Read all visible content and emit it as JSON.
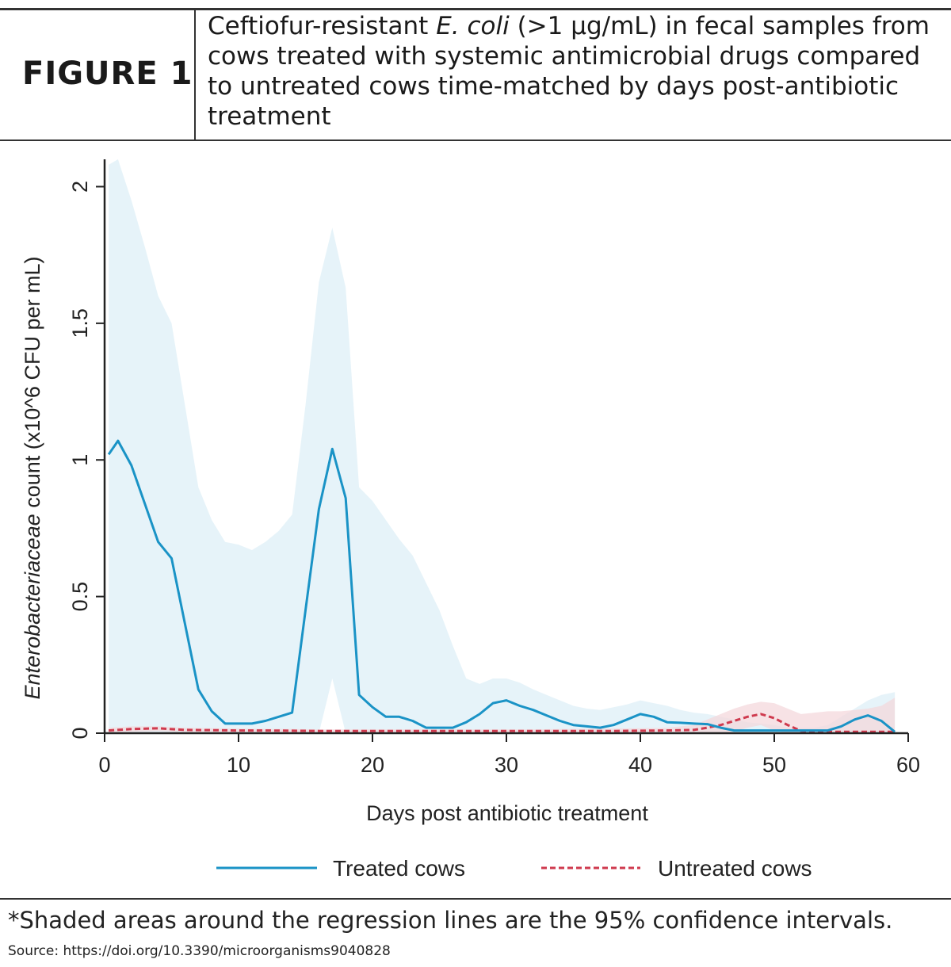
{
  "header": {
    "figure_label": "FIGURE 1",
    "caption": {
      "pre": "Ceftiofur-resistant ",
      "italic": "E. coli",
      "post": " (>1 µg/mL) in fecal samples from cows treated with systemic antimicrobial drugs compared to untreated cows time-matched by days post-antibiotic treatment"
    }
  },
  "chart_data": {
    "type": "line",
    "xlabel": "Days post antibiotic treatment",
    "ylabel_italic": "Enterobacteriaceae",
    "ylabel_rest": " count (x10^6 CFU per mL)",
    "xlim": [
      0,
      60
    ],
    "ylim": [
      0,
      2.1
    ],
    "xticks": [
      0,
      10,
      20,
      30,
      40,
      50,
      60
    ],
    "yticks": [
      0,
      0.5,
      1,
      1.5,
      2
    ],
    "xtick_labels": [
      "0",
      "10",
      "20",
      "30",
      "40",
      "50",
      "60"
    ],
    "ytick_labels": [
      "0",
      "0.5",
      "1",
      "1.5",
      "2"
    ],
    "legend_position": "bottom",
    "grid": false,
    "series": [
      {
        "name": "Treated cows",
        "color": "#1a93c6",
        "band_color": "#ddeff7",
        "line_style": "solid",
        "x": [
          0.3,
          1,
          2,
          3,
          4,
          5,
          6,
          7,
          8,
          9,
          10,
          11,
          12,
          13,
          14,
          15,
          16,
          17,
          18,
          19,
          20,
          21,
          22,
          23,
          24,
          25,
          26,
          27,
          28,
          29,
          30,
          31,
          32,
          33,
          34,
          35,
          36,
          37,
          38,
          39,
          40,
          41,
          42,
          43,
          44,
          45,
          46,
          47,
          48,
          49,
          50,
          51,
          52,
          53,
          54,
          55,
          56,
          57,
          58,
          59
        ],
        "y": [
          1.02,
          1.07,
          0.98,
          0.84,
          0.7,
          0.64,
          0.4,
          0.16,
          0.08,
          0.035,
          0.035,
          0.035,
          0.045,
          0.06,
          0.075,
          0.45,
          0.82,
          1.04,
          0.86,
          0.14,
          0.095,
          0.06,
          0.06,
          0.045,
          0.02,
          0.02,
          0.02,
          0.04,
          0.07,
          0.11,
          0.12,
          0.1,
          0.085,
          0.065,
          0.045,
          0.03,
          0.025,
          0.02,
          0.03,
          0.05,
          0.07,
          0.06,
          0.04,
          0.038,
          0.035,
          0.033,
          0.02,
          0.01,
          0.01,
          0.01,
          0.01,
          0.01,
          0.01,
          0.01,
          0.01,
          0.025,
          0.05,
          0.065,
          0.045,
          0.005
        ],
        "ci_upper": [
          2.08,
          2.1,
          1.95,
          1.78,
          1.6,
          1.5,
          1.2,
          0.9,
          0.78,
          0.7,
          0.69,
          0.67,
          0.7,
          0.74,
          0.8,
          1.2,
          1.65,
          1.85,
          1.63,
          0.9,
          0.85,
          0.78,
          0.71,
          0.65,
          0.55,
          0.45,
          0.32,
          0.2,
          0.18,
          0.2,
          0.2,
          0.185,
          0.16,
          0.14,
          0.12,
          0.1,
          0.09,
          0.085,
          0.095,
          0.105,
          0.12,
          0.11,
          0.1,
          0.085,
          0.075,
          0.07,
          0.06,
          0.05,
          0.04,
          0.035,
          0.03,
          0.02,
          0.02,
          0.02,
          0.03,
          0.06,
          0.09,
          0.12,
          0.14,
          0.15
        ],
        "ci_lower": [
          0,
          0,
          0,
          0,
          0,
          0,
          0,
          0,
          0,
          0,
          0,
          0,
          0,
          0,
          0,
          0,
          0,
          0.2,
          0,
          0,
          0,
          0,
          0,
          0,
          0,
          0,
          0,
          0,
          0,
          0,
          0,
          0,
          0,
          0,
          0,
          0,
          0,
          0,
          0,
          0,
          0,
          0,
          0,
          0,
          0,
          0,
          0,
          0,
          0,
          0,
          0,
          0,
          0,
          0,
          0,
          0,
          0,
          0,
          0,
          0
        ]
      },
      {
        "name": "Untreated cows",
        "color": "#cf3a4e",
        "band_color": "#f3d5da",
        "line_style": "dashed",
        "x": [
          0.3,
          2,
          4,
          6,
          8,
          10,
          12,
          14,
          16,
          18,
          20,
          22,
          24,
          26,
          28,
          30,
          32,
          34,
          36,
          38,
          40,
          42,
          44,
          45,
          46,
          47,
          48,
          49,
          50,
          51,
          52,
          53,
          54,
          55,
          56,
          57,
          58,
          59
        ],
        "y": [
          0.01,
          0.015,
          0.018,
          0.012,
          0.011,
          0.01,
          0.01,
          0.009,
          0.008,
          0.008,
          0.008,
          0.008,
          0.008,
          0.008,
          0.008,
          0.008,
          0.008,
          0.008,
          0.008,
          0.008,
          0.009,
          0.01,
          0.012,
          0.02,
          0.03,
          0.045,
          0.06,
          0.07,
          0.055,
          0.03,
          0.008,
          0.005,
          0.005,
          0.005,
          0.005,
          0.005,
          0.005,
          0.005
        ],
        "ci_upper": [
          0.02,
          0.025,
          0.025,
          0.02,
          0.018,
          0.017,
          0.016,
          0.015,
          0.014,
          0.014,
          0.014,
          0.014,
          0.014,
          0.014,
          0.014,
          0.014,
          0.014,
          0.015,
          0.016,
          0.017,
          0.018,
          0.02,
          0.03,
          0.05,
          0.07,
          0.09,
          0.105,
          0.115,
          0.11,
          0.09,
          0.07,
          0.075,
          0.08,
          0.08,
          0.085,
          0.09,
          0.1,
          0.13
        ],
        "ci_lower": [
          0,
          0.005,
          0.008,
          0.004,
          0.004,
          0.003,
          0.003,
          0.003,
          0.002,
          0.002,
          0.002,
          0.002,
          0.002,
          0.002,
          0.002,
          0.002,
          0.002,
          0.002,
          0.002,
          0.002,
          0.002,
          0.002,
          0,
          0,
          0,
          0.005,
          0.02,
          0.03,
          0.01,
          0,
          0,
          0,
          0,
          0,
          0,
          0,
          0,
          0
        ]
      }
    ]
  },
  "footnote": "*Shaded areas around the regression lines are the 95% confidence intervals.",
  "source": "Source: https://doi.org/10.3390/microorganisms9040828"
}
